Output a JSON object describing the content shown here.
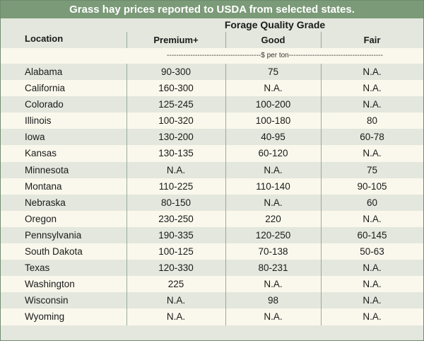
{
  "title": "Grass hay prices reported to USDA from selected states.",
  "header": {
    "location": "Location",
    "group": "Forage Quality Grade",
    "premium": "Premium+",
    "good": "Good",
    "fair": "Fair"
  },
  "unit_label": "----------------------------------------$ per ton----------------------------------------",
  "rows": [
    {
      "location": "Alabama",
      "premium": "90-300",
      "good": "75",
      "fair": "N.A."
    },
    {
      "location": "California",
      "premium": "160-300",
      "good": "N.A.",
      "fair": "N.A."
    },
    {
      "location": "Colorado",
      "premium": "125-245",
      "good": "100-200",
      "fair": "N.A."
    },
    {
      "location": "Illinois",
      "premium": "100-320",
      "good": "100-180",
      "fair": "80"
    },
    {
      "location": "Iowa",
      "premium": "130-200",
      "good": "40-95",
      "fair": "60-78"
    },
    {
      "location": "Kansas",
      "premium": "130-135",
      "good": "60-120",
      "fair": "N.A."
    },
    {
      "location": "Minnesota",
      "premium": "N.A.",
      "good": "N.A.",
      "fair": "75"
    },
    {
      "location": "Montana",
      "premium": "110-225",
      "good": "110-140",
      "fair": "90-105"
    },
    {
      "location": "Nebraska",
      "premium": "80-150",
      "good": "N.A.",
      "fair": "60"
    },
    {
      "location": "Oregon",
      "premium": "230-250",
      "good": "220",
      "fair": "N.A."
    },
    {
      "location": "Pennsylvania",
      "premium": "190-335",
      "good": "120-250",
      "fair": "60-145"
    },
    {
      "location": "South Dakota",
      "premium": "100-125",
      "good": "70-138",
      "fair": "50-63"
    },
    {
      "location": "Texas",
      "premium": "120-330",
      "good": "80-231",
      "fair": "N.A."
    },
    {
      "location": "Washington",
      "premium": "225",
      "good": "N.A.",
      "fair": "N.A."
    },
    {
      "location": "Wisconsin",
      "premium": "N.A.",
      "good": "98",
      "fair": "N.A."
    },
    {
      "location": "Wyoming",
      "premium": "N.A.",
      "good": "N.A.",
      "fair": "N.A."
    }
  ],
  "colors": {
    "title_bar": "#7b9a78",
    "row_shaded": "#e4e7dd",
    "row_light": "#faf8ec"
  }
}
